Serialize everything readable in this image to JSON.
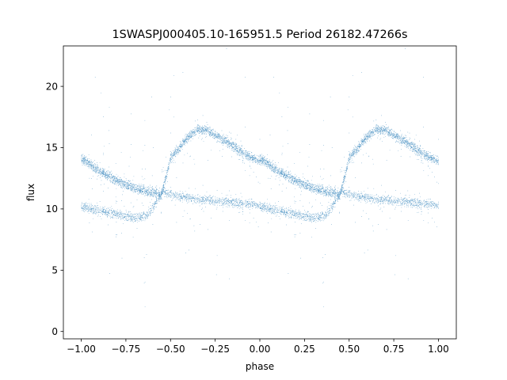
{
  "chart_data": {
    "type": "scatter",
    "title": "1SWASPJ000405.10-165951.5 Period 26182.47266s",
    "xlabel": "phase",
    "ylabel": "flux",
    "xlim": [
      -1.1,
      1.1
    ],
    "ylim": [
      -0.6,
      23.3
    ],
    "xticks": [
      -1.0,
      -0.75,
      -0.5,
      -0.25,
      0.0,
      0.25,
      0.5,
      0.75,
      1.0
    ],
    "xtick_labels": [
      "−1.00",
      "−0.75",
      "−0.50",
      "−0.25",
      "0.00",
      "0.25",
      "0.50",
      "0.75",
      "1.00"
    ],
    "yticks": [
      0,
      5,
      10,
      15,
      20
    ],
    "ytick_labels": [
      "0",
      "5",
      "10",
      "15",
      "20"
    ],
    "grid": false,
    "legend": "none",
    "marker_color": "#1f77b4",
    "series": [
      {
        "description_source": "folded light curve, primary branch",
        "x": [
          0.0,
          0.05,
          0.1,
          0.15,
          0.2,
          0.25,
          0.3,
          0.35,
          0.4,
          0.45,
          0.5,
          0.55,
          0.6,
          0.65,
          0.7,
          0.75,
          0.8,
          0.85,
          0.9,
          0.95,
          1.0
        ],
        "y": [
          14.1,
          13.6,
          13.1,
          12.7,
          12.3,
          12.0,
          11.7,
          11.5,
          11.3,
          11.2,
          14.2,
          15.0,
          15.9,
          16.5,
          16.4,
          16.0,
          15.6,
          15.1,
          14.6,
          14.2,
          13.9
        ]
      },
      {
        "description_source": "folded light curve, secondary branch",
        "x": [
          0.0,
          0.05,
          0.1,
          0.15,
          0.2,
          0.25,
          0.3,
          0.35,
          0.4,
          0.45,
          0.5,
          0.55,
          0.6,
          0.65,
          0.7,
          0.75,
          0.8,
          0.85,
          0.9,
          0.95,
          1.0
        ],
        "y": [
          10.2,
          10.0,
          9.9,
          9.7,
          9.6,
          9.4,
          9.3,
          9.4,
          10.0,
          11.4,
          11.2,
          11.0,
          10.9,
          10.8,
          10.7,
          10.6,
          10.6,
          10.5,
          10.4,
          10.4,
          10.3
        ]
      }
    ]
  }
}
